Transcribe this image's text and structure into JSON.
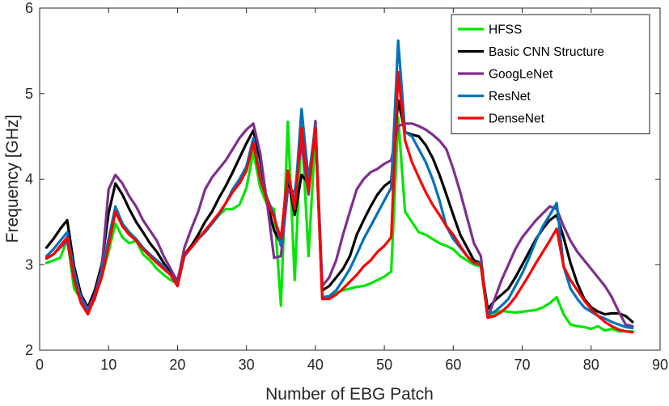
{
  "chart_data": {
    "type": "line",
    "xlabel": "Number of EBG Patch",
    "ylabel": "Frequency [GHz]",
    "xlim": [
      0,
      90
    ],
    "ylim": [
      2,
      6
    ],
    "xticks": [
      0,
      10,
      20,
      30,
      40,
      50,
      60,
      70,
      80,
      90
    ],
    "yticks": [
      2,
      3,
      4,
      5,
      6
    ],
    "grid": false,
    "legend_position": "top-right",
    "series": [
      {
        "name": "HFSS",
        "color": "#00e600",
        "x": [
          1,
          2,
          3,
          4,
          5,
          6,
          7,
          8,
          9,
          10,
          11,
          12,
          13,
          14,
          15,
          16,
          17,
          18,
          19,
          20,
          21,
          22,
          23,
          24,
          25,
          26,
          27,
          28,
          29,
          30,
          31,
          32,
          33,
          34,
          35,
          36,
          37,
          38,
          39,
          40,
          41,
          42,
          43,
          44,
          45,
          46,
          47,
          48,
          49,
          50,
          51,
          52,
          53,
          54,
          55,
          56,
          57,
          58,
          59,
          60,
          61,
          62,
          63,
          64,
          65,
          66,
          67,
          68,
          69,
          70,
          71,
          72,
          73,
          74,
          75,
          76,
          77,
          78,
          79,
          80,
          81,
          82,
          83,
          84,
          85,
          86
        ],
        "y": [
          3.02,
          3.05,
          3.08,
          3.3,
          2.72,
          2.6,
          2.44,
          2.62,
          2.85,
          3.15,
          3.48,
          3.32,
          3.25,
          3.28,
          3.12,
          3.05,
          2.95,
          2.88,
          2.82,
          2.78,
          3.12,
          3.22,
          3.3,
          3.38,
          3.48,
          3.58,
          3.65,
          3.65,
          3.7,
          3.9,
          4.32,
          3.9,
          3.7,
          3.65,
          2.52,
          4.67,
          2.82,
          4.62,
          3.1,
          4.55,
          2.6,
          2.62,
          2.67,
          2.7,
          2.72,
          2.74,
          2.75,
          2.78,
          2.82,
          2.86,
          2.92,
          4.72,
          3.62,
          3.5,
          3.38,
          3.35,
          3.3,
          3.25,
          3.22,
          3.18,
          3.1,
          3.05,
          3.0,
          2.98,
          2.4,
          2.44,
          2.46,
          2.45,
          2.44,
          2.45,
          2.46,
          2.47,
          2.5,
          2.55,
          2.62,
          2.42,
          2.3,
          2.28,
          2.27,
          2.25,
          2.28,
          2.23,
          2.25,
          2.22,
          2.22,
          2.22
        ]
      },
      {
        "name": "Basic CNN Structure",
        "color": "#000000",
        "x": [
          1,
          2,
          3,
          4,
          5,
          6,
          7,
          8,
          9,
          10,
          11,
          12,
          13,
          14,
          15,
          16,
          17,
          18,
          19,
          20,
          21,
          22,
          23,
          24,
          25,
          26,
          27,
          28,
          29,
          30,
          31,
          32,
          33,
          34,
          35,
          36,
          37,
          38,
          39,
          40,
          41,
          42,
          43,
          44,
          45,
          46,
          47,
          48,
          49,
          50,
          51,
          52,
          53,
          54,
          55,
          56,
          57,
          58,
          59,
          60,
          61,
          62,
          63,
          64,
          65,
          66,
          67,
          68,
          69,
          70,
          71,
          72,
          73,
          74,
          75,
          76,
          77,
          78,
          79,
          80,
          81,
          82,
          83,
          84,
          85,
          86
        ],
        "y": [
          3.2,
          3.3,
          3.42,
          3.52,
          2.98,
          2.65,
          2.5,
          2.7,
          3.0,
          3.6,
          3.95,
          3.82,
          3.65,
          3.5,
          3.38,
          3.25,
          3.15,
          3.02,
          2.9,
          2.82,
          3.12,
          3.22,
          3.35,
          3.5,
          3.62,
          3.78,
          3.92,
          4.08,
          4.25,
          4.42,
          4.57,
          4.22,
          3.72,
          3.4,
          3.25,
          4.02,
          3.58,
          4.05,
          3.95,
          4.62,
          2.7,
          2.75,
          2.85,
          2.95,
          3.1,
          3.35,
          3.52,
          3.68,
          3.82,
          3.92,
          3.98,
          4.92,
          4.55,
          4.52,
          4.5,
          4.4,
          4.25,
          4.05,
          3.82,
          3.58,
          3.35,
          3.2,
          3.05,
          3.02,
          2.48,
          2.58,
          2.65,
          2.72,
          2.85,
          3.0,
          3.15,
          3.3,
          3.42,
          3.52,
          3.58,
          3.32,
          3.02,
          2.78,
          2.6,
          2.5,
          2.45,
          2.42,
          2.43,
          2.43,
          2.4,
          2.33
        ]
      },
      {
        "name": "GoogLeNet",
        "color": "#7e2f8e",
        "x": [
          1,
          2,
          3,
          4,
          5,
          6,
          7,
          8,
          9,
          10,
          11,
          12,
          13,
          14,
          15,
          16,
          17,
          18,
          19,
          20,
          21,
          22,
          23,
          24,
          25,
          26,
          27,
          28,
          29,
          30,
          31,
          32,
          33,
          34,
          35,
          36,
          37,
          38,
          39,
          40,
          41,
          42,
          43,
          44,
          45,
          46,
          47,
          48,
          49,
          50,
          51,
          52,
          53,
          54,
          55,
          56,
          57,
          58,
          59,
          60,
          61,
          62,
          63,
          64,
          65,
          66,
          67,
          68,
          69,
          70,
          71,
          72,
          73,
          74,
          75,
          76,
          77,
          78,
          79,
          80,
          81,
          82,
          83,
          84,
          85,
          86
        ],
        "y": [
          3.07,
          3.12,
          3.2,
          3.28,
          2.85,
          2.62,
          2.48,
          2.65,
          2.95,
          3.88,
          4.05,
          3.95,
          3.8,
          3.68,
          3.52,
          3.4,
          3.28,
          3.1,
          2.95,
          2.8,
          3.2,
          3.42,
          3.62,
          3.88,
          4.02,
          4.12,
          4.22,
          4.35,
          4.48,
          4.58,
          4.65,
          4.3,
          3.72,
          3.08,
          3.1,
          3.88,
          3.85,
          4.42,
          3.82,
          4.68,
          2.75,
          2.85,
          3.05,
          3.35,
          3.62,
          3.88,
          4.0,
          4.08,
          4.12,
          4.18,
          4.22,
          4.62,
          4.65,
          4.65,
          4.62,
          4.58,
          4.52,
          4.45,
          4.35,
          4.12,
          3.85,
          3.55,
          3.25,
          3.1,
          2.38,
          2.6,
          2.82,
          3.0,
          3.18,
          3.32,
          3.42,
          3.52,
          3.6,
          3.68,
          3.65,
          3.45,
          3.28,
          3.15,
          3.05,
          2.95,
          2.85,
          2.75,
          2.62,
          2.45,
          2.3,
          2.28
        ]
      },
      {
        "name": "ResNet",
        "color": "#0072bd",
        "x": [
          1,
          2,
          3,
          4,
          5,
          6,
          7,
          8,
          9,
          10,
          11,
          12,
          13,
          14,
          15,
          16,
          17,
          18,
          19,
          20,
          21,
          22,
          23,
          24,
          25,
          26,
          27,
          28,
          29,
          30,
          31,
          32,
          33,
          34,
          35,
          36,
          37,
          38,
          39,
          40,
          41,
          42,
          43,
          44,
          45,
          46,
          47,
          48,
          49,
          50,
          51,
          52,
          53,
          54,
          55,
          56,
          57,
          58,
          59,
          60,
          61,
          62,
          63,
          64,
          65,
          66,
          67,
          68,
          69,
          70,
          71,
          72,
          73,
          74,
          75,
          76,
          77,
          78,
          79,
          80,
          81,
          82,
          83,
          84,
          85,
          86
        ],
        "y": [
          3.1,
          3.18,
          3.28,
          3.38,
          2.92,
          2.6,
          2.45,
          2.6,
          2.9,
          3.3,
          3.68,
          3.48,
          3.38,
          3.3,
          3.2,
          3.12,
          3.05,
          2.98,
          2.88,
          2.75,
          3.1,
          3.2,
          3.3,
          3.38,
          3.48,
          3.58,
          3.72,
          3.88,
          4.0,
          4.15,
          4.48,
          4.02,
          3.78,
          3.58,
          3.22,
          4.05,
          3.72,
          4.82,
          4.0,
          4.62,
          2.62,
          2.63,
          2.7,
          2.82,
          2.95,
          3.12,
          3.3,
          3.45,
          3.6,
          3.75,
          3.9,
          5.62,
          4.55,
          4.5,
          4.35,
          4.2,
          4.0,
          3.75,
          3.45,
          3.3,
          3.2,
          3.1,
          3.02,
          3.02,
          2.42,
          2.45,
          2.52,
          2.6,
          2.75,
          2.9,
          3.08,
          3.28,
          3.45,
          3.58,
          3.72,
          2.98,
          2.72,
          2.6,
          2.5,
          2.45,
          2.4,
          2.37,
          2.33,
          2.3,
          2.27,
          2.26
        ]
      },
      {
        "name": "DenseNet",
        "color": "#ff0000",
        "x": [
          1,
          2,
          3,
          4,
          5,
          6,
          7,
          8,
          9,
          10,
          11,
          12,
          13,
          14,
          15,
          16,
          17,
          18,
          19,
          20,
          21,
          22,
          23,
          24,
          25,
          26,
          27,
          28,
          29,
          30,
          31,
          32,
          33,
          34,
          35,
          36,
          37,
          38,
          39,
          40,
          41,
          42,
          43,
          44,
          45,
          46,
          47,
          48,
          49,
          50,
          51,
          52,
          53,
          54,
          55,
          56,
          57,
          58,
          59,
          60,
          61,
          62,
          63,
          64,
          65,
          66,
          67,
          68,
          69,
          70,
          71,
          72,
          73,
          74,
          75,
          76,
          77,
          78,
          79,
          80,
          81,
          82,
          83,
          84,
          85,
          86
        ],
        "y": [
          3.08,
          3.12,
          3.22,
          3.32,
          2.82,
          2.55,
          2.42,
          2.62,
          2.85,
          3.22,
          3.62,
          3.45,
          3.35,
          3.28,
          3.18,
          3.1,
          3.02,
          2.95,
          2.88,
          2.75,
          3.12,
          3.2,
          3.3,
          3.4,
          3.5,
          3.6,
          3.72,
          3.85,
          3.95,
          4.1,
          4.42,
          4.0,
          3.75,
          3.55,
          3.3,
          4.1,
          3.65,
          4.6,
          3.85,
          4.6,
          2.6,
          2.6,
          2.65,
          2.72,
          2.8,
          2.88,
          2.98,
          3.05,
          3.15,
          3.22,
          3.32,
          5.25,
          4.45,
          4.2,
          4.02,
          3.85,
          3.7,
          3.58,
          3.45,
          3.35,
          3.22,
          3.1,
          3.02,
          3.0,
          2.38,
          2.4,
          2.45,
          2.52,
          2.62,
          2.75,
          2.88,
          3.02,
          3.15,
          3.28,
          3.42,
          2.98,
          2.82,
          2.7,
          2.58,
          2.48,
          2.4,
          2.33,
          2.28,
          2.24,
          2.22,
          2.21
        ]
      }
    ]
  }
}
